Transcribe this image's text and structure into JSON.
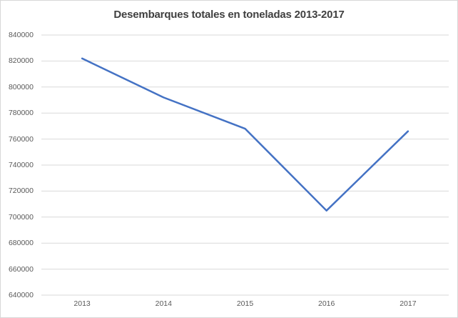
{
  "window": {
    "background": "#ffffff",
    "border_color": "#d7d7d7"
  },
  "chart_data": {
    "type": "line",
    "title": "Desembarques totales en toneladas 2013-2017",
    "categories": [
      "2013",
      "2014",
      "2015",
      "2016",
      "2017"
    ],
    "series": [
      {
        "name": "Desembarques totales en toneladas",
        "values": [
          822000,
          792000,
          768000,
          705000,
          766000
        ]
      }
    ],
    "xlabel": "",
    "ylabel": "",
    "ylim": [
      640000,
      840000
    ],
    "y_tick_step": 20000,
    "y_tick_labels": [
      "840000",
      "820000",
      "800000",
      "780000",
      "760000",
      "740000",
      "720000",
      "700000",
      "680000",
      "660000",
      "640000"
    ],
    "grid": true,
    "legend_position": "none",
    "colors": {
      "line": "#4472C4",
      "gridline": "#d9d9d9",
      "title_text": "#404040",
      "tick_text": "#595959"
    }
  }
}
